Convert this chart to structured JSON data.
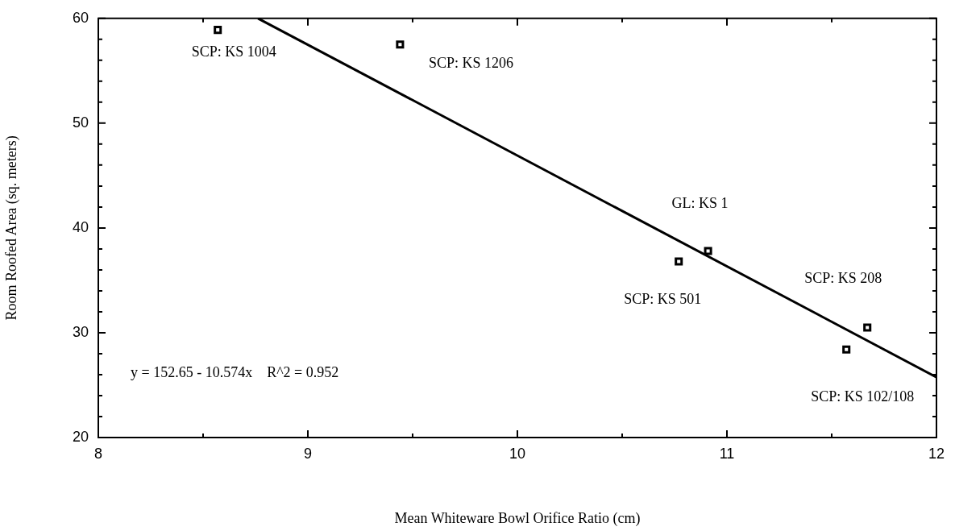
{
  "chart_data": {
    "type": "scatter",
    "xlabel": "Mean Whiteware Bowl Orifice Ratio (cm)",
    "ylabel": "Room Roofed Area (sq. meters)",
    "xlim": [
      8,
      12
    ],
    "xticks": [
      8,
      {
        "value": 8.5,
        "label": null
      },
      9,
      {
        "value": 9.5,
        "label": null
      },
      10,
      {
        "value": 10.5,
        "label": null
      },
      11,
      {
        "value": 11.5,
        "label": null
      },
      12
    ],
    "ylim": [
      20,
      60
    ],
    "yticks": [
      20,
      {
        "value": 22,
        "label": null
      },
      {
        "value": 24,
        "label": null
      },
      {
        "value": 26,
        "label": null
      },
      {
        "value": 28,
        "label": null
      },
      30,
      {
        "value": 32,
        "label": null
      },
      {
        "value": 34,
        "label": null
      },
      {
        "value": 36,
        "label": null
      },
      {
        "value": 38,
        "label": null
      },
      40,
      {
        "value": 42,
        "label": null
      },
      {
        "value": 44,
        "label": null
      },
      {
        "value": 46,
        "label": null
      },
      {
        "value": 48,
        "label": null
      },
      50,
      {
        "value": 52,
        "label": null
      },
      {
        "value": 54,
        "label": null
      },
      {
        "value": 56,
        "label": null
      },
      {
        "value": 58,
        "label": null
      },
      60
    ],
    "grid": false,
    "legend": false,
    "marker": "square",
    "series": [
      {
        "color": "#000000",
        "x": [
          8.57,
          9.44,
          10.77,
          10.91,
          11.57,
          11.67
        ],
        "values": [
          58.9,
          57.5,
          36.8,
          37.8,
          28.4,
          30.5
        ]
      },
      {
        "type": "line",
        "color": "#000000",
        "x": [
          8.762,
          12
        ],
        "values": [
          60,
          25.76
        ],
        "marker": "none",
        "line_style": "solid"
      }
    ],
    "annotations": [
      {
        "text": "SCP: KS 1004",
        "x": 8.57,
        "y": 58.9
      },
      {
        "text": "SCP: KS 1206",
        "x": 9.44,
        "y": 57.5
      },
      {
        "text": "SCP: KS 501",
        "x": 10.77,
        "y": 36.8
      },
      {
        "text": "GL: KS 1",
        "x": 10.91,
        "y": 37.8
      },
      {
        "text": "SCP: KS 102/108",
        "x": 11.57,
        "y": 28.4
      },
      {
        "text": "SCP: KS 208",
        "x": 11.67,
        "y": 30.5
      },
      "y = 152.65 - 10.574x    R^2 = 0.952"
    ]
  }
}
